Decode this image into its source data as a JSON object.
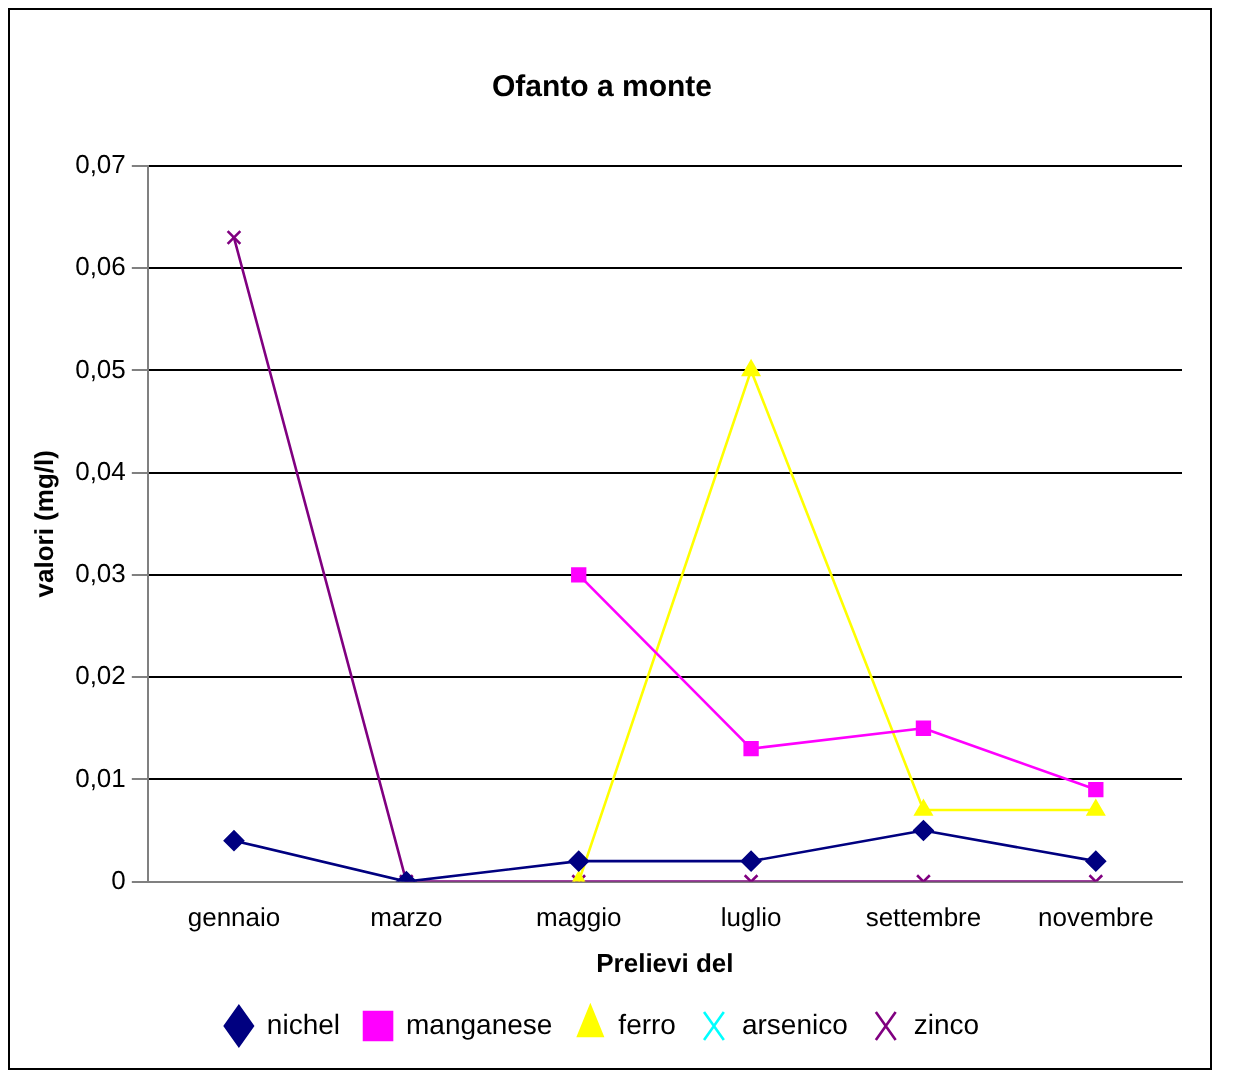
{
  "chart_data": {
    "type": "line",
    "title": "Ofanto a monte",
    "xlabel": "Prelievi del",
    "ylabel": "valori (mg/l)",
    "categories": [
      "gennaio",
      "marzo",
      "maggio",
      "luglio",
      "settembre",
      "novembre"
    ],
    "series": [
      {
        "name": "nichel",
        "color": "#000080",
        "marker": "diamond",
        "values": [
          0.004,
          0,
          0.002,
          0.002,
          0.005,
          0.002
        ]
      },
      {
        "name": "manganese",
        "color": "#ff00ff",
        "marker": "square",
        "values": [
          null,
          null,
          0.03,
          0.013,
          0.015,
          0.009
        ]
      },
      {
        "name": "ferro",
        "color": "#ffff00",
        "marker": "triangle",
        "values": [
          null,
          null,
          0,
          0.05,
          0.007,
          0.007
        ]
      },
      {
        "name": "arsenico",
        "color": "#00ffff",
        "marker": "cross",
        "values": [
          null,
          null,
          null,
          null,
          null,
          null
        ]
      },
      {
        "name": "zinco",
        "color": "#800080",
        "marker": "cross",
        "values": [
          0.063,
          0,
          0,
          0,
          0,
          0
        ]
      }
    ],
    "ylim": [
      0,
      0.07
    ],
    "yticks": [
      {
        "value": 0,
        "label": "0"
      },
      {
        "value": 0.01,
        "label": "0,01"
      },
      {
        "value": 0.02,
        "label": "0,02"
      },
      {
        "value": 0.03,
        "label": "0,03"
      },
      {
        "value": 0.04,
        "label": "0,04"
      },
      {
        "value": 0.05,
        "label": "0,05"
      },
      {
        "value": 0.06,
        "label": "0,06"
      },
      {
        "value": 0.07,
        "label": "0,07"
      }
    ],
    "grid": "y",
    "legend": "bottom"
  }
}
